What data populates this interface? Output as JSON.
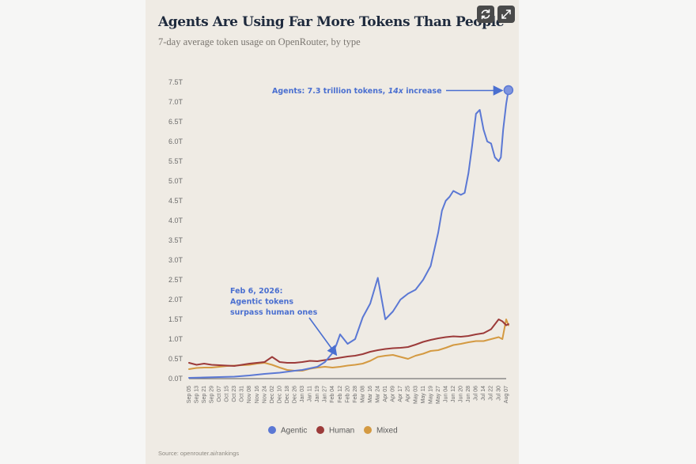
{
  "header": {
    "title": "Agents Are Using Far More Tokens Than People",
    "subtitle": "7-day average token usage on OpenRouter, by type",
    "refresh_icon": "refresh-icon",
    "expand_icon": "expand-icon"
  },
  "footer": {
    "source": "Source: openrouter.ai/rankings"
  },
  "colors": {
    "agentic": "#5b78d4",
    "human": "#9c3b3a",
    "mixed": "#d49a42",
    "annotation": "#4a6fd0",
    "axis_text": "#6b6b6b",
    "zero_line": "#777777"
  },
  "chart_data": {
    "type": "line",
    "title": "Agents Are Using Far More Tokens Than People",
    "subtitle": "7-day average token usage on OpenRouter, by type",
    "xlabel": "",
    "ylabel": "",
    "ylim": [
      0,
      7.5
    ],
    "yticks": [
      0,
      0.5,
      1.0,
      1.5,
      2.0,
      2.5,
      3.0,
      3.5,
      4.0,
      4.5,
      5.0,
      5.5,
      6.0,
      6.5,
      7.0,
      7.5
    ],
    "ytick_labels": [
      "0.0T",
      "0.5T",
      "1.0T",
      "1.5T",
      "2.0T",
      "2.5T",
      "3.0T",
      "3.5T",
      "4.0T",
      "4.5T",
      "5.0T",
      "5.5T",
      "6.0T",
      "6.5T",
      "7.0T",
      "7.5T"
    ],
    "xtick_labels": [
      "Sep 05",
      "Sep 13",
      "Sep 21",
      "Sep 29",
      "Oct 07",
      "Oct 15",
      "Oct 23",
      "Oct 31",
      "Nov 08",
      "Nov 16",
      "Nov 24",
      "Dec 02",
      "Dec 10",
      "Dec 18",
      "Dec 26",
      "Jan 03",
      "Jan 11",
      "Jan 19",
      "Jan 27",
      "Feb 04",
      "Feb 12",
      "Feb 20",
      "Feb 28",
      "Mar 08",
      "Mar 16",
      "Mar 24",
      "Apr 01",
      "Apr 09",
      "Apr 17",
      "Apr 25",
      "May 03",
      "May 11",
      "May 19",
      "May 27",
      "Jun 04",
      "Jun 12",
      "Jun 20",
      "Jun 28",
      "Jul 06",
      "Jul 14",
      "Jul 22",
      "Jul 30",
      "Aug 07"
    ],
    "grid": false,
    "legend_position": "bottom",
    "series": [
      {
        "name": "Agentic",
        "x": [
          0,
          2,
          4,
          6,
          8,
          10,
          12,
          14,
          15,
          16,
          17,
          18,
          19,
          19.5,
          20,
          21,
          22,
          23,
          24,
          25,
          26,
          26.5,
          27,
          27.5,
          28,
          29,
          30,
          31,
          32,
          33,
          33.5,
          34,
          34.5,
          35,
          35.5,
          36,
          36.5,
          37,
          37.5,
          38,
          38.5,
          39,
          39.5,
          40,
          40.5,
          41,
          41.3,
          41.6,
          42,
          42.3
        ],
        "values": [
          0.02,
          0.03,
          0.04,
          0.05,
          0.08,
          0.12,
          0.15,
          0.2,
          0.22,
          0.26,
          0.3,
          0.42,
          0.65,
          0.85,
          1.12,
          0.88,
          1.0,
          1.55,
          1.9,
          2.55,
          1.5,
          1.6,
          1.7,
          1.85,
          2.0,
          2.15,
          2.25,
          2.5,
          2.85,
          3.7,
          4.25,
          4.5,
          4.6,
          4.75,
          4.7,
          4.65,
          4.7,
          5.2,
          5.9,
          6.7,
          6.8,
          6.3,
          6.0,
          5.95,
          5.6,
          5.5,
          5.6,
          6.3,
          6.95,
          7.3
        ]
      },
      {
        "name": "Human",
        "x": [
          0,
          1,
          2,
          3,
          4,
          5,
          6,
          7,
          8,
          9,
          10,
          11,
          12,
          13,
          14,
          15,
          16,
          17,
          18,
          19,
          20,
          21,
          22,
          23,
          24,
          25,
          26,
          27,
          28,
          29,
          30,
          31,
          32,
          33,
          34,
          35,
          36,
          37,
          38,
          39,
          40,
          41,
          41.5,
          42,
          42.3
        ],
        "values": [
          0.4,
          0.35,
          0.38,
          0.35,
          0.34,
          0.33,
          0.32,
          0.35,
          0.38,
          0.4,
          0.42,
          0.55,
          0.42,
          0.4,
          0.4,
          0.42,
          0.45,
          0.44,
          0.47,
          0.5,
          0.53,
          0.56,
          0.58,
          0.62,
          0.68,
          0.72,
          0.75,
          0.77,
          0.78,
          0.8,
          0.86,
          0.93,
          0.98,
          1.02,
          1.05,
          1.07,
          1.06,
          1.08,
          1.12,
          1.15,
          1.25,
          1.5,
          1.45,
          1.35,
          1.38
        ]
      },
      {
        "name": "Mixed",
        "x": [
          0,
          1,
          2,
          3,
          4,
          5,
          6,
          7,
          8,
          9,
          10,
          11,
          12,
          13,
          14,
          15,
          16,
          17,
          18,
          19,
          20,
          21,
          22,
          23,
          24,
          25,
          26,
          27,
          28,
          29,
          30,
          31,
          32,
          33,
          34,
          35,
          36,
          37,
          38,
          39,
          40,
          41,
          41.5,
          42,
          42.3
        ],
        "values": [
          0.24,
          0.27,
          0.28,
          0.28,
          0.3,
          0.32,
          0.33,
          0.34,
          0.35,
          0.38,
          0.4,
          0.35,
          0.28,
          0.22,
          0.2,
          0.2,
          0.25,
          0.28,
          0.3,
          0.28,
          0.3,
          0.33,
          0.35,
          0.38,
          0.45,
          0.55,
          0.58,
          0.6,
          0.55,
          0.5,
          0.58,
          0.63,
          0.7,
          0.72,
          0.78,
          0.85,
          0.88,
          0.92,
          0.95,
          0.95,
          1.0,
          1.05,
          1.0,
          1.5,
          1.35
        ]
      }
    ],
    "annotations": [
      {
        "id": "agents-peak",
        "text_parts": [
          "Agents: 7.3 trillion tokens, ",
          "14x",
          " increase"
        ],
        "point": [
          42.3,
          7.3
        ]
      },
      {
        "id": "crossover",
        "lines": [
          "Feb 6, 2026:",
          "Agentic tokens",
          "surpass human ones"
        ],
        "point": [
          19.3,
          0.52
        ]
      }
    ]
  }
}
